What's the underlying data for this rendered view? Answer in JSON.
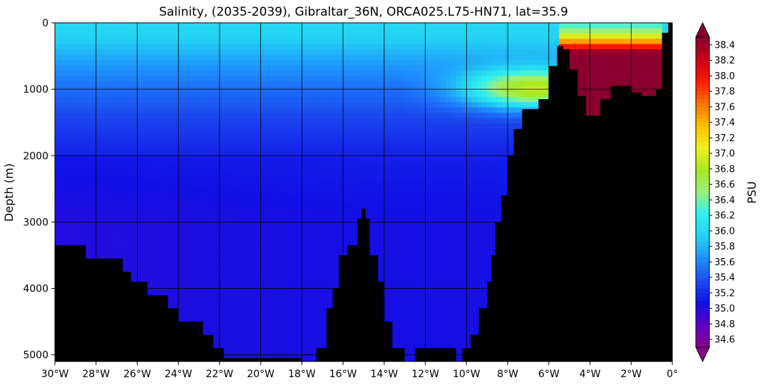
{
  "chart_data": {
    "type": "heatmap",
    "title": "Salinity, (2035-2039), Gibraltar_36N, ORCA025.L75-HN71, lat=35.9",
    "ylabel": "Depth (m)",
    "xlabel": "",
    "x_range_lon": [
      -30,
      0
    ],
    "y_range_depth": [
      0,
      5100
    ],
    "y_inverted": true,
    "grid": true,
    "x_ticks": [
      {
        "value": -30,
        "label": "30°W"
      },
      {
        "value": -28,
        "label": "28°W"
      },
      {
        "value": -26,
        "label": "26°W"
      },
      {
        "value": -24,
        "label": "24°W"
      },
      {
        "value": -22,
        "label": "22°W"
      },
      {
        "value": -20,
        "label": "20°W"
      },
      {
        "value": -18,
        "label": "18°W"
      },
      {
        "value": -16,
        "label": "16°W"
      },
      {
        "value": -14,
        "label": "14°W"
      },
      {
        "value": -12,
        "label": "12°W"
      },
      {
        "value": -10,
        "label": "10°W"
      },
      {
        "value": -8,
        "label": "8°W"
      },
      {
        "value": -6,
        "label": "6°W"
      },
      {
        "value": -4,
        "label": "4°W"
      },
      {
        "value": -2,
        "label": "2°W"
      },
      {
        "value": 0,
        "label": "0°"
      }
    ],
    "y_ticks": [
      {
        "value": 0,
        "label": "0"
      },
      {
        "value": 1000,
        "label": "1000"
      },
      {
        "value": 2000,
        "label": "2000"
      },
      {
        "value": 3000,
        "label": "3000"
      },
      {
        "value": 4000,
        "label": "4000"
      },
      {
        "value": 5000,
        "label": "5000"
      }
    ],
    "colorbar": {
      "label": "PSU",
      "range": [
        34.5,
        38.5
      ],
      "extend": "both",
      "ticks": [
        "34.6",
        "34.8",
        "35.0",
        "35.2",
        "35.4",
        "35.6",
        "35.8",
        "36.0",
        "36.2",
        "36.4",
        "36.6",
        "36.8",
        "37.0",
        "37.2",
        "37.4",
        "37.6",
        "37.8",
        "38.0",
        "38.2",
        "38.4"
      ],
      "colormap": [
        "#8b008b",
        "#5a00c8",
        "#1010e6",
        "#1c4cf0",
        "#1e90ff",
        "#22d2f2",
        "#30f0f0",
        "#9cf07a",
        "#a8e820",
        "#f0f020",
        "#ffc000",
        "#ff7000",
        "#ff1a00",
        "#c80018",
        "#8b0030"
      ]
    },
    "water_salinity_profiles": [
      {
        "depth": 0,
        "psu": 36.0
      },
      {
        "depth": 300,
        "psu": 35.9
      },
      {
        "depth": 600,
        "psu": 35.7
      },
      {
        "depth": 1000,
        "psu": 35.5
      },
      {
        "depth": 1500,
        "psu": 35.3
      },
      {
        "depth": 2000,
        "psu": 35.15
      },
      {
        "depth": 3000,
        "psu": 35.05
      },
      {
        "depth": 5000,
        "psu": 35.05
      }
    ],
    "mediterranean_outflow": {
      "lon_range": [
        -9,
        -5.5
      ],
      "depth_range": [
        700,
        1300
      ],
      "peak_psu": 36.9
    },
    "mediterranean_basin": {
      "lon_range": [
        -5.5,
        -0.5
      ],
      "surface_psu": 36.5,
      "deep_psu": 38.5
    },
    "bathymetry": [
      [
        -30,
        3350
      ],
      [
        -29,
        3350
      ],
      [
        -28.5,
        3550
      ],
      [
        -27,
        3550
      ],
      [
        -26.7,
        3750
      ],
      [
        -26.3,
        3900
      ],
      [
        -25.5,
        4100
      ],
      [
        -24.5,
        4300
      ],
      [
        -24,
        4500
      ],
      [
        -22.8,
        4700
      ],
      [
        -22.3,
        4900
      ],
      [
        -21.8,
        5050
      ],
      [
        -18,
        5100
      ],
      [
        -17.3,
        4900
      ],
      [
        -16.8,
        4300
      ],
      [
        -16.5,
        4000
      ],
      [
        -16.2,
        3500
      ],
      [
        -15.8,
        3350
      ],
      [
        -15.3,
        2950
      ],
      [
        -15.1,
        2800
      ],
      [
        -14.9,
        2950
      ],
      [
        -14.7,
        3500
      ],
      [
        -14.3,
        3900
      ],
      [
        -14.0,
        4500
      ],
      [
        -13.6,
        4900
      ],
      [
        -13.0,
        5100
      ],
      [
        -12.5,
        4900
      ],
      [
        -12.0,
        4900
      ],
      [
        -11.3,
        4900
      ],
      [
        -10.5,
        5100
      ],
      [
        -10.2,
        4900
      ],
      [
        -9.8,
        4700
      ],
      [
        -9.4,
        4300
      ],
      [
        -9.0,
        3900
      ],
      [
        -8.8,
        3500
      ],
      [
        -8.6,
        3000
      ],
      [
        -8.3,
        2600
      ],
      [
        -8.0,
        2000
      ],
      [
        -7.7,
        1600
      ],
      [
        -7.3,
        1300
      ],
      [
        -6.5,
        1150
      ],
      [
        -6.0,
        650
      ],
      [
        -5.6,
        350
      ],
      [
        -5.3,
        400
      ],
      [
        -5.0,
        700
      ],
      [
        -4.6,
        1100
      ],
      [
        -4.2,
        1400
      ],
      [
        -3.5,
        1150
      ],
      [
        -3.0,
        950
      ],
      [
        -2.4,
        950
      ],
      [
        -2.0,
        1050
      ],
      [
        -1.5,
        1100
      ],
      [
        -0.8,
        1000
      ],
      [
        -0.5,
        150
      ],
      [
        -0.2,
        0
      ],
      [
        0,
        0
      ]
    ]
  }
}
